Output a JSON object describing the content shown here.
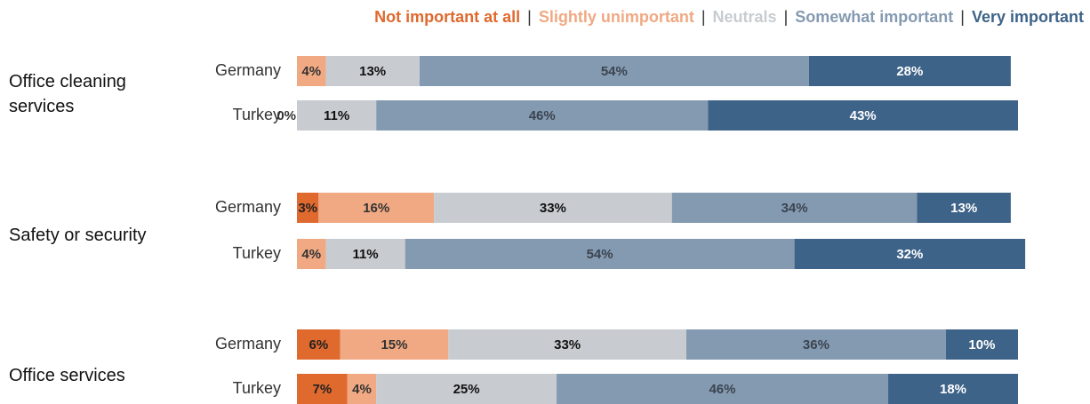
{
  "chart_data": {
    "type": "bar",
    "orientation": "horizontal",
    "stacked": true,
    "legend_separator": "|",
    "groups": [
      "Office cleaning services",
      "Safety or security",
      "Office services"
    ],
    "categories": [
      "Germany",
      "Turkey",
      "Germany",
      "Turkey",
      "Germany",
      "Turkey"
    ],
    "xlim": [
      0,
      100
    ],
    "series": [
      {
        "name": "Not important at all",
        "color": "#e0692e",
        "label_color": "#222222",
        "values": [
          0,
          0,
          3,
          0,
          6,
          7
        ],
        "value_labels": [
          null,
          null,
          "3%",
          null,
          "6%",
          "7%"
        ]
      },
      {
        "name": "Slightly unimportant",
        "color": "#f0a983",
        "label_color": "#333333",
        "values": [
          4,
          0,
          16,
          4,
          15,
          4
        ],
        "value_labels": [
          "4%",
          "0%",
          "16%",
          "4%",
          "15%",
          "4%"
        ]
      },
      {
        "name": "Neutrals",
        "color": "#c8ccd0",
        "label_color": "#111111",
        "values": [
          13,
          11,
          33,
          11,
          33,
          25
        ],
        "value_labels": [
          "13%",
          "11%",
          "33%",
          "11%",
          "33%",
          "25%"
        ]
      },
      {
        "name": "Somewhat important",
        "color": "#849ab1",
        "label_color": "#3b4450",
        "values": [
          54,
          46,
          34,
          54,
          36,
          46
        ],
        "value_labels": [
          "54%",
          "46%",
          "34%",
          "54%",
          "36%",
          "46%"
        ]
      },
      {
        "name": "Very important",
        "color": "#3e6388",
        "label_color": "#ffffff",
        "values": [
          28,
          43,
          13,
          32,
          10,
          18
        ],
        "value_labels": [
          "28%",
          "43%",
          "13%",
          "32%",
          "10%",
          "18%"
        ]
      }
    ]
  }
}
